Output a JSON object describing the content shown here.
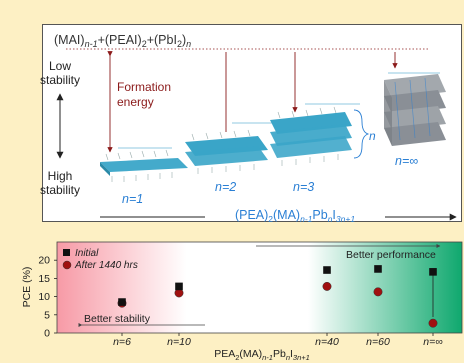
{
  "top": {
    "formula": "(MAI)n-1+(PEAI)2+(PbI2)n",
    "low_stability": [
      "Low",
      "stability"
    ],
    "high_stability": [
      "High",
      "stability"
    ],
    "formation_energy": [
      "Formation",
      "energy"
    ],
    "n_labels": [
      "n=1",
      "n=2",
      "n=3",
      "n=∞"
    ],
    "n_brace_label": "n",
    "axis_label": "(PEA)2(MA)n-1PbnI3n+1"
  },
  "colors": {
    "background": "#fdf0c4",
    "octahedron_blue": "#3aa5c8",
    "octahedron_gray": "#8a8f96",
    "arrow_red": "#8b1a1a",
    "label_blue": "#2a7fd4",
    "initial_marker": "#111111",
    "after_marker": "#a01010"
  },
  "chart_data": {
    "type": "scatter",
    "xlabel": "PEA2(MA)n-1PbnI3n+1",
    "ylabel": "PCE (%)",
    "ylim": [
      0,
      25
    ],
    "yticks": [
      0,
      5,
      10,
      15,
      20
    ],
    "categories": [
      "n=6",
      "n=10",
      "n=40",
      "n=60",
      "n=∞"
    ],
    "series": [
      {
        "name": "Initial",
        "marker": "square",
        "values": [
          8.5,
          12.8,
          17.3,
          17.6,
          16.8
        ]
      },
      {
        "name": "After 1440 hrs",
        "marker": "circle",
        "values": [
          8.2,
          11.0,
          12.8,
          11.3,
          2.7
        ]
      }
    ],
    "annotations": [
      "Better stability",
      "Better performance"
    ],
    "legend": "top-left"
  }
}
